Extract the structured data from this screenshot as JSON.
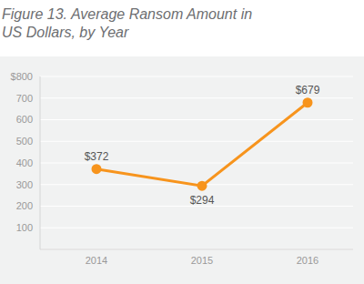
{
  "chart_data": {
    "type": "line",
    "title": "Figure 13. Average Ransom Amount in US Dollars, by Year",
    "categories": [
      "2014",
      "2015",
      "2016"
    ],
    "values": [
      372,
      294,
      679
    ],
    "value_labels": [
      "$372",
      "$294",
      "$679"
    ],
    "color": "#f7941d",
    "ylim": [
      0,
      800
    ],
    "yticks": [
      100,
      200,
      300,
      400,
      500,
      600,
      700,
      {
        "value": 800,
        "label": "$800"
      }
    ],
    "grid": true,
    "data_labels": true,
    "marker": "circle"
  }
}
